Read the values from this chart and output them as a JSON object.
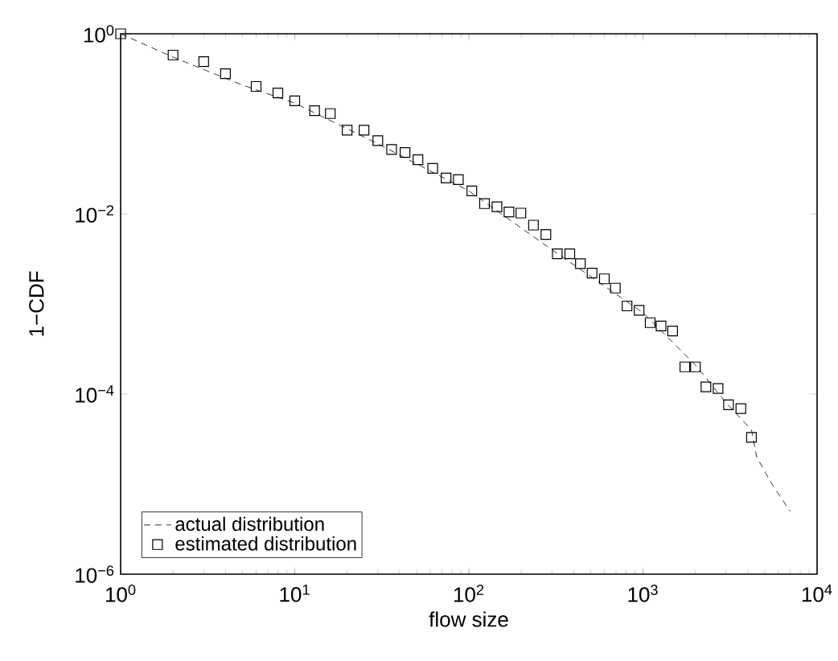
{
  "chart_data": {
    "type": "scatter",
    "xlabel": "flow size",
    "ylabel": "1−CDF",
    "log": "xy",
    "legend": "bottom left",
    "grid": false,
    "xlim": [
      1,
      10000
    ],
    "ylim": [
      1e-06,
      1
    ],
    "xticks": [
      {
        "value": 1,
        "label": "10$^{0}$"
      },
      {
        "value": 10,
        "label": "10$^{1}$"
      },
      {
        "value": 100,
        "label": "10$^{2}$"
      },
      {
        "value": 1000,
        "label": "10$^{3}$"
      },
      {
        "value": 10000,
        "label": "10$^{4}$"
      }
    ],
    "yticks": [
      {
        "value": 1e-06,
        "label": "10$^{−6}$"
      },
      {
        "value": 0.0001,
        "label": "10$^{−4}$"
      },
      {
        "value": 0.01,
        "label": "10$^{−2}$"
      },
      {
        "value": 1,
        "label": "10$^{0}$"
      }
    ],
    "series": [
      {
        "name": "actual distribution",
        "type": "line",
        "line_style": "dashed",
        "marker": "none",
        "color": "#000000",
        "x": [
          1,
          2,
          5,
          10,
          30,
          100,
          300,
          1000,
          2000,
          3000,
          4200,
          4500,
          5500,
          7000
        ],
        "values": [
          1,
          0.55,
          0.27,
          0.17,
          0.06,
          0.018,
          0.004,
          0.0008,
          0.00021,
          8e-05,
          4e-05,
          2e-05,
          1e-05,
          5e-06
        ]
      },
      {
        "name": "estimated distribution",
        "marker": "square",
        "color": "#000000",
        "x": [
          1,
          2,
          3,
          4,
          6,
          8,
          10,
          13,
          16,
          20,
          25,
          30,
          36,
          43,
          51,
          62,
          74,
          87,
          104,
          123,
          145,
          170,
          199,
          235,
          277,
          322,
          380,
          437,
          510,
          600,
          694,
          810,
          950,
          1100,
          1270,
          1480,
          1740,
          2000,
          2300,
          2700,
          3100,
          3650,
          4200
        ],
        "values": [
          1,
          0.58,
          0.49,
          0.36,
          0.26,
          0.22,
          0.18,
          0.14,
          0.13,
          0.085,
          0.085,
          0.065,
          0.052,
          0.048,
          0.04,
          0.032,
          0.025,
          0.024,
          0.018,
          0.013,
          0.012,
          0.0105,
          0.0102,
          0.0075,
          0.0059,
          0.0036,
          0.0036,
          0.0028,
          0.0022,
          0.0019,
          0.0015,
          0.00095,
          0.00085,
          0.00062,
          0.00057,
          0.0005,
          0.0002,
          0.0002,
          0.00012,
          0.000115,
          7.6e-05,
          6.9e-05,
          3.3e-05
        ]
      }
    ]
  }
}
